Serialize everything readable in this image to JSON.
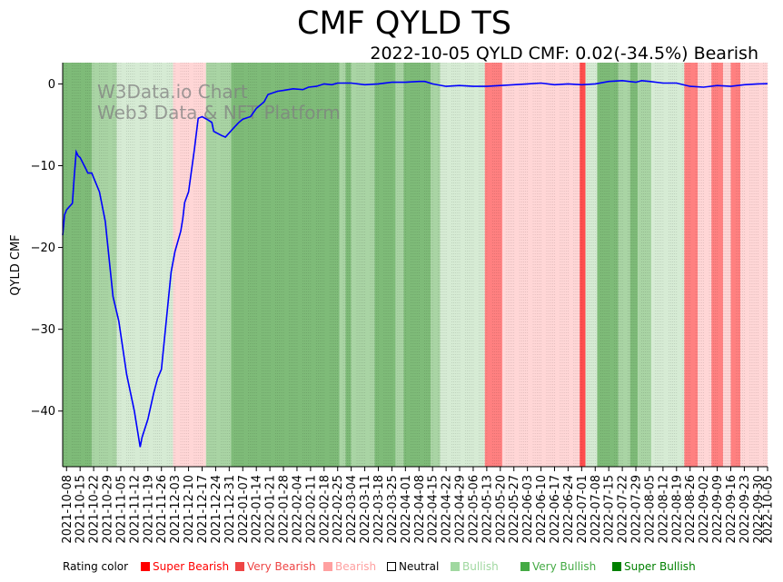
{
  "chart_data": {
    "type": "line",
    "title": "CMF QYLD TS",
    "subtitle": "2022-10-05 QYLD CMF: 0.02(-34.5%) Bearish",
    "ylabel": "QYLD CMF",
    "xlabel": "",
    "ylim": [
      -46.8,
      2.6
    ],
    "yticks": [
      0,
      -10,
      -20,
      -30,
      -40
    ],
    "grid": false,
    "watermark": [
      "W3Data.io Chart",
      "Web3 Data & NFT Platform"
    ],
    "x_start": "2021-10-06",
    "x_end": "2022-10-05",
    "x_ticks": [
      "2021-10-08",
      "2021-10-15",
      "2021-10-22",
      "2021-10-29",
      "2021-11-05",
      "2021-11-12",
      "2021-11-19",
      "2021-11-26",
      "2021-12-03",
      "2021-12-10",
      "2021-12-17",
      "2021-12-24",
      "2021-12-31",
      "2022-01-07",
      "2022-01-14",
      "2022-01-21",
      "2022-01-28",
      "2022-02-04",
      "2022-02-11",
      "2022-02-18",
      "2022-02-25",
      "2022-03-04",
      "2022-03-11",
      "2022-03-18",
      "2022-03-25",
      "2022-04-01",
      "2022-04-08",
      "2022-04-15",
      "2022-04-22",
      "2022-04-29",
      "2022-05-06",
      "2022-05-13",
      "2022-05-20",
      "2022-05-27",
      "2022-06-03",
      "2022-06-10",
      "2022-06-17",
      "2022-06-24",
      "2022-07-01",
      "2022-07-08",
      "2022-07-15",
      "2022-07-22",
      "2022-07-29",
      "2022-08-05",
      "2022-08-12",
      "2022-08-19",
      "2022-08-26",
      "2022-09-02",
      "2022-09-09",
      "2022-09-16",
      "2022-09-23",
      "2022-09-30",
      "2022-10-05"
    ],
    "series": [
      {
        "name": "QYLD CMF",
        "color": "#0000ff",
        "points": [
          [
            "2021-10-06",
            -18.5
          ],
          [
            "2021-10-07",
            -16.0
          ],
          [
            "2021-10-08",
            -15.4
          ],
          [
            "2021-10-11",
            -14.6
          ],
          [
            "2021-10-12",
            -11.2
          ],
          [
            "2021-10-13",
            -8.3
          ],
          [
            "2021-10-14",
            -8.8
          ],
          [
            "2021-10-15",
            -9.0
          ],
          [
            "2021-10-18",
            -10.4
          ],
          [
            "2021-10-19",
            -10.9
          ],
          [
            "2021-10-20",
            -10.9
          ],
          [
            "2021-10-21",
            -10.9
          ],
          [
            "2021-10-25",
            -13.2
          ],
          [
            "2021-10-28",
            -16.8
          ],
          [
            "2021-11-01",
            -26.0
          ],
          [
            "2021-11-04",
            -29.0
          ],
          [
            "2021-11-08",
            -35.5
          ],
          [
            "2021-11-12",
            -40.0
          ],
          [
            "2021-11-15",
            -44.4
          ],
          [
            "2021-11-16",
            -43.2
          ],
          [
            "2021-11-19",
            -41.0
          ],
          [
            "2021-11-22",
            -37.8
          ],
          [
            "2021-11-24",
            -36.0
          ],
          [
            "2021-11-26",
            -34.9
          ],
          [
            "2021-12-01",
            -23.0
          ],
          [
            "2021-12-03",
            -20.5
          ],
          [
            "2021-12-06",
            -18.0
          ],
          [
            "2021-12-07",
            -16.5
          ],
          [
            "2021-12-08",
            -14.5
          ],
          [
            "2021-12-10",
            -13.2
          ],
          [
            "2021-12-13",
            -8.0
          ],
          [
            "2021-12-15",
            -4.2
          ],
          [
            "2021-12-17",
            -4.0
          ],
          [
            "2021-12-20",
            -4.4
          ],
          [
            "2021-12-22",
            -4.7
          ],
          [
            "2021-12-23",
            -5.8
          ],
          [
            "2021-12-27",
            -6.3
          ],
          [
            "2021-12-29",
            -6.5
          ],
          [
            "2022-01-03",
            -5.2
          ],
          [
            "2022-01-05",
            -4.7
          ],
          [
            "2022-01-07",
            -4.3
          ],
          [
            "2022-01-11",
            -4.0
          ],
          [
            "2022-01-14",
            -3.0
          ],
          [
            "2022-01-18",
            -2.2
          ],
          [
            "2022-01-20",
            -1.3
          ],
          [
            "2022-01-25",
            -0.9
          ],
          [
            "2022-01-28",
            -0.8
          ],
          [
            "2022-02-02",
            -0.6
          ],
          [
            "2022-02-07",
            -0.7
          ],
          [
            "2022-02-10",
            -0.4
          ],
          [
            "2022-02-14",
            -0.3
          ],
          [
            "2022-02-18",
            0.0
          ],
          [
            "2022-02-22",
            -0.1
          ],
          [
            "2022-02-25",
            0.1
          ],
          [
            "2022-03-04",
            0.1
          ],
          [
            "2022-03-11",
            -0.1
          ],
          [
            "2022-03-18",
            0.0
          ],
          [
            "2022-03-25",
            0.2
          ],
          [
            "2022-04-01",
            0.2
          ],
          [
            "2022-04-08",
            0.3
          ],
          [
            "2022-04-11",
            0.3
          ],
          [
            "2022-04-15",
            0.0
          ],
          [
            "2022-04-22",
            -0.3
          ],
          [
            "2022-04-29",
            -0.2
          ],
          [
            "2022-05-06",
            -0.3
          ],
          [
            "2022-05-13",
            -0.3
          ],
          [
            "2022-05-20",
            -0.2
          ],
          [
            "2022-05-27",
            -0.1
          ],
          [
            "2022-06-03",
            0.0
          ],
          [
            "2022-06-10",
            0.1
          ],
          [
            "2022-06-17",
            -0.1
          ],
          [
            "2022-06-24",
            0.0
          ],
          [
            "2022-07-01",
            -0.1
          ],
          [
            "2022-07-08",
            0.0
          ],
          [
            "2022-07-15",
            0.3
          ],
          [
            "2022-07-22",
            0.4
          ],
          [
            "2022-07-29",
            0.2
          ],
          [
            "2022-08-01",
            0.4
          ],
          [
            "2022-08-05",
            0.3
          ],
          [
            "2022-08-12",
            0.1
          ],
          [
            "2022-08-19",
            0.1
          ],
          [
            "2022-08-26",
            -0.3
          ],
          [
            "2022-09-02",
            -0.4
          ],
          [
            "2022-09-09",
            -0.2
          ],
          [
            "2022-09-16",
            -0.3
          ],
          [
            "2022-09-23",
            -0.1
          ],
          [
            "2022-09-30",
            0.0
          ],
          [
            "2022-10-05",
            0.02
          ]
        ]
      }
    ],
    "rating_bands": [
      {
        "start": "2021-10-06",
        "end": "2021-10-21",
        "rating": "Very Bullish"
      },
      {
        "start": "2021-10-21",
        "end": "2021-11-03",
        "rating": "Bullish"
      },
      {
        "start": "2021-11-03",
        "end": "2021-12-02",
        "rating": "Neutral-Bullish"
      },
      {
        "start": "2021-12-02",
        "end": "2021-12-19",
        "rating": "Bearish"
      },
      {
        "start": "2021-12-19",
        "end": "2022-01-01",
        "rating": "Bullish"
      },
      {
        "start": "2022-01-01",
        "end": "2022-02-26",
        "rating": "Very Bullish"
      },
      {
        "start": "2022-02-26",
        "end": "2022-03-01",
        "rating": "Bullish"
      },
      {
        "start": "2022-03-01",
        "end": "2022-03-04",
        "rating": "Very Bullish"
      },
      {
        "start": "2022-03-04",
        "end": "2022-03-16",
        "rating": "Bullish"
      },
      {
        "start": "2022-03-16",
        "end": "2022-03-27",
        "rating": "Very Bullish"
      },
      {
        "start": "2022-03-27",
        "end": "2022-03-31",
        "rating": "Bullish"
      },
      {
        "start": "2022-03-31",
        "end": "2022-04-14",
        "rating": "Very Bullish"
      },
      {
        "start": "2022-04-14",
        "end": "2022-04-19",
        "rating": "Bullish"
      },
      {
        "start": "2022-04-19",
        "end": "2022-05-12",
        "rating": "Neutral-Bullish"
      },
      {
        "start": "2022-05-12",
        "end": "2022-05-21",
        "rating": "Very Bearish"
      },
      {
        "start": "2022-05-21",
        "end": "2022-06-30",
        "rating": "Bearish"
      },
      {
        "start": "2022-06-30",
        "end": "2022-07-03",
        "rating": "Super Bearish"
      },
      {
        "start": "2022-07-03",
        "end": "2022-07-09",
        "rating": "Neutral-Bullish"
      },
      {
        "start": "2022-07-09",
        "end": "2022-07-20",
        "rating": "Very Bullish"
      },
      {
        "start": "2022-07-20",
        "end": "2022-07-26",
        "rating": "Bullish"
      },
      {
        "start": "2022-07-26",
        "end": "2022-07-30",
        "rating": "Very Bullish"
      },
      {
        "start": "2022-07-30",
        "end": "2022-08-06",
        "rating": "Bullish"
      },
      {
        "start": "2022-08-06",
        "end": "2022-08-23",
        "rating": "Neutral-Bullish"
      },
      {
        "start": "2022-08-23",
        "end": "2022-08-30",
        "rating": "Very Bearish"
      },
      {
        "start": "2022-08-30",
        "end": "2022-09-06",
        "rating": "Bearish"
      },
      {
        "start": "2022-09-06",
        "end": "2022-09-12",
        "rating": "Very Bearish"
      },
      {
        "start": "2022-09-12",
        "end": "2022-09-16",
        "rating": "Bearish"
      },
      {
        "start": "2022-09-16",
        "end": "2022-09-21",
        "rating": "Very Bearish"
      },
      {
        "start": "2022-09-21",
        "end": "2022-10-05",
        "rating": "Bearish"
      }
    ],
    "rating_colors": {
      "Super Bearish": "#ff4d4d",
      "Very Bearish": "#ff8080",
      "Bearish": "#ffd6d6",
      "Neutral-Bullish": "#d6ebd4",
      "Bullish": "#a9d4a4",
      "Very Bullish": "#7ebb78",
      "Super Bullish": "#3f9b3f"
    }
  },
  "legend": {
    "label": "Rating color",
    "items": [
      {
        "label": "Super Bearish",
        "swatch": "#ff0000",
        "text_color": "#ff0000"
      },
      {
        "label": "Very Bearish",
        "swatch": "#ee4444",
        "text_color": "#ee4444"
      },
      {
        "label": "Bearish",
        "swatch": "#ffa0a0",
        "text_color": "#ffa0a0"
      },
      {
        "label": "Neutral",
        "swatch": "#ffffff",
        "text_color": "#000000"
      },
      {
        "label": "Bullish",
        "swatch": "#a0d8a0",
        "text_color": "#a0d8a0"
      },
      {
        "label": "Very Bullish",
        "swatch": "#44aa44",
        "text_color": "#44aa44"
      },
      {
        "label": "Super Bullish",
        "swatch": "#008000",
        "text_color": "#008000"
      }
    ]
  }
}
